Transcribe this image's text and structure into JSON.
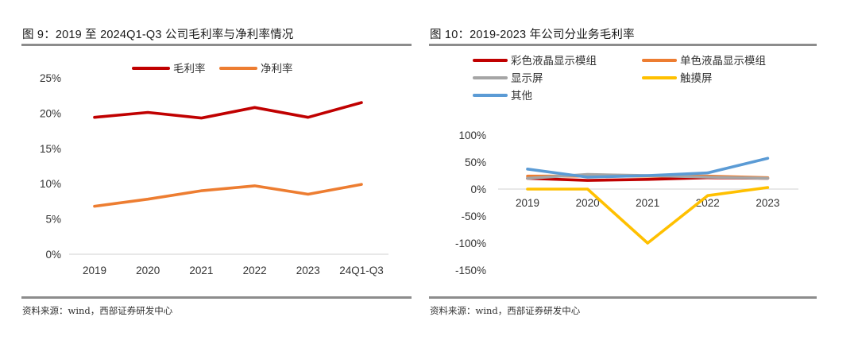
{
  "panels": [
    {
      "title": "图 9：2019 至 2024Q1-Q3 公司毛利率与净利率情况",
      "source": "资料来源：wind，西部证券研发中心"
    },
    {
      "title": "图 10：2019-2023 年公司分业务毛利率",
      "source": "资料来源：wind，西部证券研发中心"
    }
  ],
  "chart_data": [
    {
      "type": "line",
      "title": "图 9：2019 至 2024Q1-Q3 公司毛利率与净利率情况",
      "xlabel": "",
      "ylabel": "",
      "categories": [
        "2019",
        "2020",
        "2021",
        "2022",
        "2023",
        "24Q1-Q3"
      ],
      "ylim": [
        0,
        25
      ],
      "yticks": [
        "0%",
        "5%",
        "10%",
        "15%",
        "20%",
        "25%"
      ],
      "ytick_values": [
        0,
        5,
        10,
        15,
        20,
        25
      ],
      "grid": false,
      "legend_position": "top",
      "series": [
        {
          "name": "毛利率",
          "color": "#c00000",
          "values": [
            19.4,
            20.1,
            19.3,
            20.8,
            19.4,
            21.5
          ]
        },
        {
          "name": "净利率",
          "color": "#ed7d31",
          "values": [
            6.8,
            7.8,
            9.0,
            9.7,
            8.5,
            9.9
          ]
        }
      ]
    },
    {
      "type": "line",
      "title": "图 10：2019-2023 年公司分业务毛利率",
      "xlabel": "",
      "ylabel": "",
      "categories": [
        "2019",
        "2020",
        "2021",
        "2022",
        "2023"
      ],
      "ylim": [
        -150,
        100
      ],
      "yticks": [
        "-150%",
        "-100%",
        "-50%",
        "0%",
        "50%",
        "100%"
      ],
      "ytick_values": [
        -150,
        -100,
        -50,
        0,
        50,
        100
      ],
      "grid": false,
      "legend_position": "top-left",
      "series": [
        {
          "name": "彩色液晶显示模组",
          "color": "#c00000",
          "values": [
            20,
            16,
            18,
            21,
            20
          ]
        },
        {
          "name": "单色液晶显示模组",
          "color": "#ed7d31",
          "values": [
            24,
            24,
            24,
            24,
            21
          ]
        },
        {
          "name": "显示屏",
          "color": "#a5a5a5",
          "values": [
            20,
            27,
            25,
            22,
            20
          ]
        },
        {
          "name": "触摸屏",
          "color": "#ffc000",
          "values": [
            0,
            0,
            -100,
            -12,
            3
          ]
        },
        {
          "name": "其他",
          "color": "#5b9bd5",
          "values": [
            37,
            22,
            25,
            30,
            57
          ]
        }
      ]
    }
  ]
}
